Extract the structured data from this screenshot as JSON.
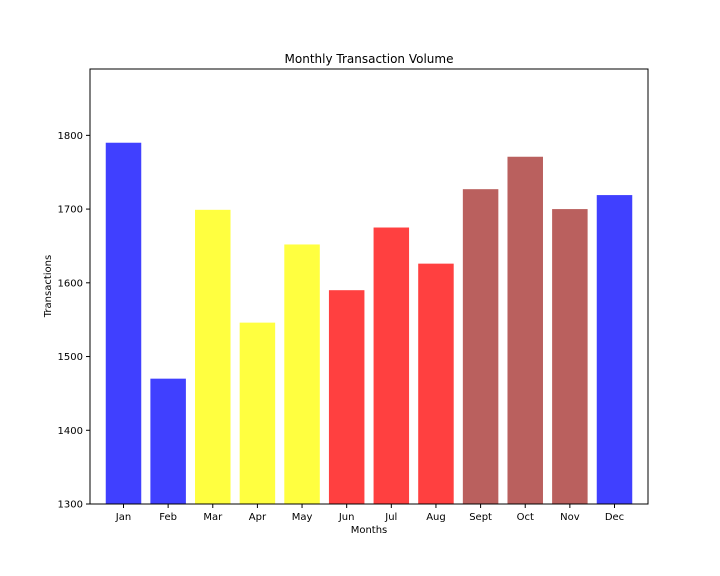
{
  "chart_data": {
    "type": "bar",
    "title": "Monthly Transaction Volume",
    "xlabel": "Months",
    "ylabel": "Transactions",
    "categories": [
      "Jan",
      "Feb",
      "Mar",
      "Apr",
      "May",
      "Jun",
      "Jul",
      "Aug",
      "Sept",
      "Oct",
      "Nov",
      "Dec"
    ],
    "values": [
      1790,
      1470,
      1699,
      1546,
      1652,
      1590,
      1675,
      1626,
      1727,
      1771,
      1700,
      1719
    ],
    "colors": [
      "#4040ff",
      "#4040ff",
      "#ffff40",
      "#ffff40",
      "#ffff40",
      "#ff4040",
      "#ff4040",
      "#ff4040",
      "#ba605e",
      "#ba605e",
      "#ba605e",
      "#4040ff"
    ],
    "ylim": [
      1300,
      1890
    ],
    "yticks": [
      1300,
      1400,
      1500,
      1600,
      1700,
      1800
    ],
    "grid": false
  }
}
